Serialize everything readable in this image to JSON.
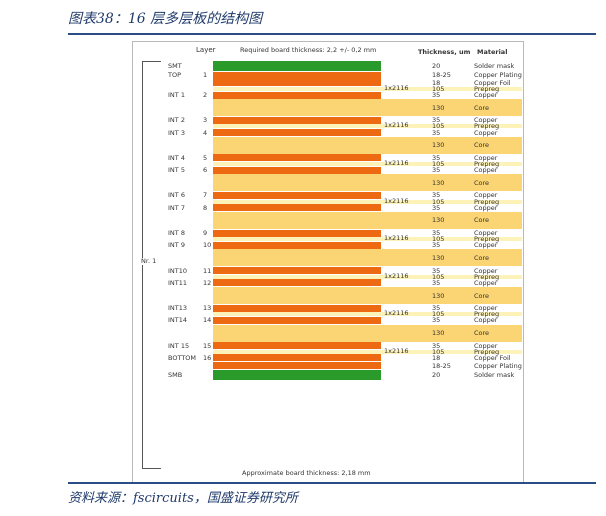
{
  "caption": "图表38：16 层多层板的结构图",
  "source": "资料来源：fscircuits，国盛证券研究所",
  "header": {
    "layer": "Layer",
    "required_thickness": "Required board thickness: 2,2 +/- 0,2 mm",
    "thickness": "Thickness, um",
    "material": "Material"
  },
  "footer_thickness": "Approximate board thickness: 2,18 mm",
  "stack_label": "Nr. 1",
  "layer_labels": [
    {
      "name": "SMT",
      "num": ""
    },
    {
      "name": "TOP",
      "num": "1"
    },
    {
      "name": "INT 1",
      "num": "2"
    },
    {
      "name": "INT 2",
      "num": "3"
    },
    {
      "name": "INT 3",
      "num": "4"
    },
    {
      "name": "INT 4",
      "num": "5"
    },
    {
      "name": "INT 5",
      "num": "6"
    },
    {
      "name": "INT 6",
      "num": "7"
    },
    {
      "name": "INT 7",
      "num": "8"
    },
    {
      "name": "INT 8",
      "num": "9"
    },
    {
      "name": "INT 9",
      "num": "10"
    },
    {
      "name": "INT10",
      "num": "11"
    },
    {
      "name": "INT11",
      "num": "12"
    },
    {
      "name": "INT13",
      "num": "13"
    },
    {
      "name": "INT14",
      "num": "14"
    },
    {
      "name": "INT 15",
      "num": "15"
    },
    {
      "name": "BOTTOM",
      "num": "16"
    },
    {
      "name": "SMB",
      "num": ""
    }
  ],
  "prepreg_label": "1x2116",
  "rows": [
    {
      "kind": "mask",
      "thk": "20",
      "mat": "Solder mask"
    },
    {
      "kind": "copper",
      "thk": "18-25",
      "mat": "Copper Plating"
    },
    {
      "kind": "copper",
      "thk": "18",
      "mat": "Copper Foil"
    },
    {
      "kind": "prepreg",
      "thk": "105",
      "mat": "Prepreg"
    },
    {
      "kind": "copper",
      "thk": "35",
      "mat": "Copper"
    },
    {
      "kind": "core",
      "thk": "130",
      "mat": "Core"
    },
    {
      "kind": "copper",
      "thk": "35",
      "mat": "Copper"
    },
    {
      "kind": "prepreg",
      "thk": "105",
      "mat": "Prepreg"
    },
    {
      "kind": "copper",
      "thk": "35",
      "mat": "Copper"
    },
    {
      "kind": "core",
      "thk": "130",
      "mat": "Core"
    },
    {
      "kind": "copper",
      "thk": "35",
      "mat": "Copper"
    },
    {
      "kind": "prepreg",
      "thk": "105",
      "mat": "Prepreg"
    },
    {
      "kind": "copper",
      "thk": "35",
      "mat": "Copper"
    },
    {
      "kind": "core",
      "thk": "130",
      "mat": "Core"
    },
    {
      "kind": "copper",
      "thk": "35",
      "mat": "Copper"
    },
    {
      "kind": "prepreg",
      "thk": "105",
      "mat": "Prepreg"
    },
    {
      "kind": "copper",
      "thk": "35",
      "mat": "Copper"
    },
    {
      "kind": "core",
      "thk": "130",
      "mat": "Core"
    },
    {
      "kind": "copper",
      "thk": "35",
      "mat": "Copper"
    },
    {
      "kind": "prepreg",
      "thk": "105",
      "mat": "Prepreg"
    },
    {
      "kind": "copper",
      "thk": "35",
      "mat": "Copper"
    },
    {
      "kind": "core",
      "thk": "130",
      "mat": "Core"
    },
    {
      "kind": "copper",
      "thk": "35",
      "mat": "Copper"
    },
    {
      "kind": "prepreg",
      "thk": "105",
      "mat": "Prepreg"
    },
    {
      "kind": "copper",
      "thk": "35",
      "mat": "Copper"
    },
    {
      "kind": "core",
      "thk": "130",
      "mat": "Core"
    },
    {
      "kind": "copper",
      "thk": "35",
      "mat": "Copper"
    },
    {
      "kind": "prepreg",
      "thk": "105",
      "mat": "Prepreg"
    },
    {
      "kind": "copper",
      "thk": "35",
      "mat": "Copper"
    },
    {
      "kind": "core",
      "thk": "130",
      "mat": "Core"
    },
    {
      "kind": "copper",
      "thk": "35",
      "mat": "Copper"
    },
    {
      "kind": "prepreg",
      "thk": "105",
      "mat": "Prepreg"
    },
    {
      "kind": "copper",
      "thk": "18",
      "mat": "Copper Foil"
    },
    {
      "kind": "copper",
      "thk": "18-25",
      "mat": "Copper Plating"
    },
    {
      "kind": "mask",
      "thk": "20",
      "mat": "Solder mask"
    }
  ],
  "colors": {
    "mask": "#2a9a2a",
    "copper": "#ee6a12",
    "prepreg": "#fdf3b8",
    "core": "#fbd573",
    "accent": "#2b4d86"
  }
}
